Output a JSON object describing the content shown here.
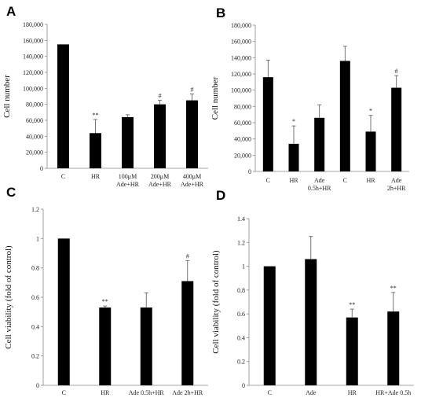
{
  "chart_data": [
    {
      "panel": "A",
      "type": "bar",
      "ylabel": "Cell number",
      "ylim": [
        0,
        180000
      ],
      "yticks": [
        "0",
        "20,000",
        "40,000",
        "60,000",
        "80,000",
        "100,000",
        "120,000",
        "140,000",
        "160,000",
        "180,000"
      ],
      "categories": [
        [
          "C"
        ],
        [
          "HR"
        ],
        [
          "100μM",
          "Ade+HR"
        ],
        [
          "200μM",
          "Ade+HR"
        ],
        [
          "400μM",
          "Ade+HR"
        ]
      ],
      "values": [
        155000,
        44000,
        64000,
        80000,
        85000
      ],
      "errors": [
        0,
        17000,
        3000,
        5000,
        8000
      ],
      "significance": [
        "",
        "**",
        "",
        "#",
        "#"
      ],
      "grid": false
    },
    {
      "panel": "B",
      "type": "bar",
      "ylabel": "Cell number",
      "ylim": [
        0,
        180000
      ],
      "yticks": [
        "0",
        "20,000",
        "40,000",
        "60,000",
        "80,000",
        "100,000",
        "120,000",
        "140,000",
        "160,000",
        "180,000"
      ],
      "categories": [
        [
          "C"
        ],
        [
          "HR"
        ],
        [
          "Ade",
          "0.5h+HR"
        ],
        [
          "C"
        ],
        [
          "HR"
        ],
        [
          "Ade",
          "2h+HR"
        ]
      ],
      "values": [
        116000,
        34000,
        66000,
        136000,
        49000,
        103000
      ],
      "errors": [
        21000,
        22000,
        16000,
        18000,
        20000,
        15000
      ],
      "significance": [
        "",
        "*",
        "",
        "",
        "*",
        "#"
      ],
      "grid": false
    },
    {
      "panel": "C",
      "type": "bar",
      "ylabel": "Cell viability (fold of control)",
      "ylim": [
        0,
        1.2
      ],
      "yticks": [
        "0",
        "0.2",
        "0.4",
        "0.6",
        "0.8",
        "1",
        "1.2"
      ],
      "categories": [
        [
          "C"
        ],
        [
          "HR"
        ],
        [
          "Ade 0.5h+HR"
        ],
        [
          "Ade 2h+HR"
        ]
      ],
      "values": [
        1.0,
        0.53,
        0.53,
        0.71
      ],
      "errors": [
        0,
        0.01,
        0.1,
        0.14
      ],
      "significance": [
        "",
        "**",
        "",
        "#"
      ],
      "grid": false
    },
    {
      "panel": "D",
      "type": "bar",
      "ylabel": "Cell viability (fold of control)",
      "ylim": [
        0,
        1.4
      ],
      "yticks": [
        "0",
        "0.2",
        "0.4",
        "0.6",
        "0.8",
        "1",
        "1.2",
        "1.4"
      ],
      "categories": [
        [
          "C"
        ],
        [
          "Ade"
        ],
        [
          "HR"
        ],
        [
          "HR+Ade 0.5h"
        ]
      ],
      "values": [
        1.0,
        1.06,
        0.57,
        0.62
      ],
      "errors": [
        0,
        0.19,
        0.07,
        0.16
      ],
      "significance": [
        "",
        "",
        "**",
        "**"
      ],
      "grid": false
    }
  ]
}
